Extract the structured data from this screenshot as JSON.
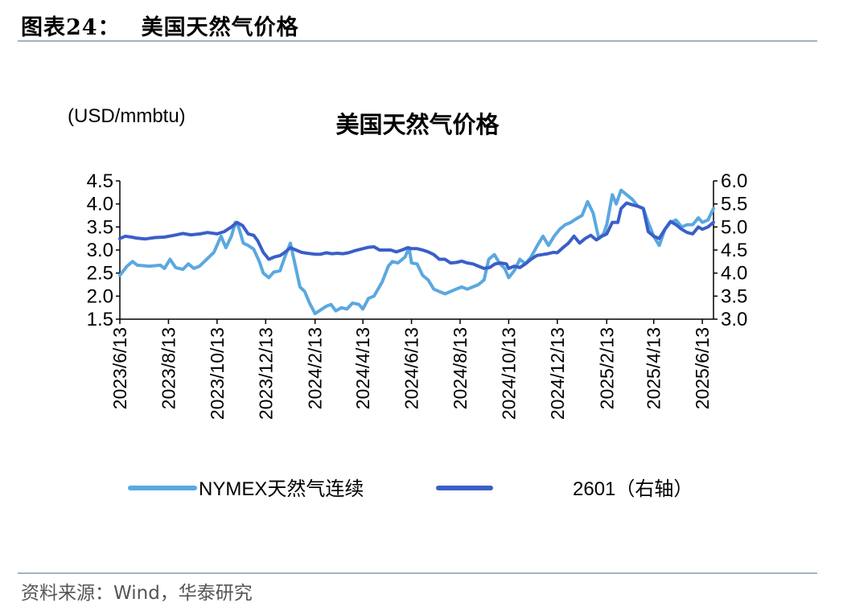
{
  "header": {
    "figure_no": "图表24：",
    "title": "美国天然气价格"
  },
  "source": "资料来源：Wind，华泰研究",
  "colors": {
    "nymex": "#5aa8e0",
    "contract": "#3a5fc8",
    "rule": "#9fb3c8"
  },
  "chart_data": {
    "type": "line",
    "title": "美国天然气价格",
    "unit_label": "(USD/mmbtu)",
    "ylim": [
      1.5,
      4.5
    ],
    "y_ticks": [
      "4.5",
      "4.0",
      "3.5",
      "3.0",
      "2.5",
      "2.0",
      "1.5"
    ],
    "y2lim": [
      3.0,
      6.0
    ],
    "y2_ticks": [
      "6.0",
      "5.5",
      "5.0",
      "4.5",
      "4.0",
      "3.5",
      "3.0"
    ],
    "x_start": "2023-06-13",
    "x_end": "2025-06-27",
    "x_ticks": [
      "2023/6/13",
      "2023/8/13",
      "2023/10/13",
      "2023/12/13",
      "2024/2/13",
      "2024/4/13",
      "2024/6/13",
      "2024/8/13",
      "2024/10/13",
      "2024/12/13",
      "2025/2/13",
      "2025/4/13",
      "2025/6/13"
    ],
    "grid": false,
    "legend_position": "bottom",
    "series": [
      {
        "name": "NYMEX天然气连续",
        "axis": "left",
        "values": [
          [
            "2023-06-13",
            2.45
          ],
          [
            "2023-06-22",
            2.65
          ],
          [
            "2023-06-29",
            2.75
          ],
          [
            "2023-07-05",
            2.67
          ],
          [
            "2023-07-20",
            2.65
          ],
          [
            "2023-08-03",
            2.67
          ],
          [
            "2023-08-08",
            2.6
          ],
          [
            "2023-08-15",
            2.8
          ],
          [
            "2023-08-22",
            2.62
          ],
          [
            "2023-08-31",
            2.58
          ],
          [
            "2023-09-07",
            2.7
          ],
          [
            "2023-09-14",
            2.6
          ],
          [
            "2023-09-21",
            2.65
          ],
          [
            "2023-09-30",
            2.8
          ],
          [
            "2023-10-09",
            2.95
          ],
          [
            "2023-10-18",
            3.3
          ],
          [
            "2023-10-24",
            3.05
          ],
          [
            "2023-10-31",
            3.3
          ],
          [
            "2023-11-05",
            3.6
          ],
          [
            "2023-11-09",
            3.5
          ],
          [
            "2023-11-15",
            3.15
          ],
          [
            "2023-11-21",
            3.1
          ],
          [
            "2023-11-28",
            3.02
          ],
          [
            "2023-12-05",
            2.75
          ],
          [
            "2023-12-10",
            2.5
          ],
          [
            "2023-12-17",
            2.4
          ],
          [
            "2023-12-23",
            2.52
          ],
          [
            "2023-12-31",
            2.55
          ],
          [
            "2024-01-06",
            2.85
          ],
          [
            "2024-01-13",
            3.15
          ],
          [
            "2024-01-20",
            2.6
          ],
          [
            "2024-01-25",
            2.2
          ],
          [
            "2024-01-31",
            2.1
          ],
          [
            "2024-02-06",
            1.85
          ],
          [
            "2024-02-13",
            1.62
          ],
          [
            "2024-02-20",
            1.7
          ],
          [
            "2024-02-27",
            1.78
          ],
          [
            "2024-03-04",
            1.82
          ],
          [
            "2024-03-10",
            1.68
          ],
          [
            "2024-03-17",
            1.75
          ],
          [
            "2024-03-24",
            1.72
          ],
          [
            "2024-03-31",
            1.85
          ],
          [
            "2024-04-08",
            1.82
          ],
          [
            "2024-04-13",
            1.72
          ],
          [
            "2024-04-20",
            1.95
          ],
          [
            "2024-04-27",
            2.0
          ],
          [
            "2024-05-07",
            2.3
          ],
          [
            "2024-05-15",
            2.65
          ],
          [
            "2024-05-20",
            2.75
          ],
          [
            "2024-05-27",
            2.72
          ],
          [
            "2024-06-05",
            2.85
          ],
          [
            "2024-06-10",
            3.05
          ],
          [
            "2024-06-13",
            2.72
          ],
          [
            "2024-06-20",
            2.7
          ],
          [
            "2024-06-27",
            2.45
          ],
          [
            "2024-07-04",
            2.35
          ],
          [
            "2024-07-11",
            2.15
          ],
          [
            "2024-07-18",
            2.1
          ],
          [
            "2024-07-25",
            2.05
          ],
          [
            "2024-08-01",
            2.1
          ],
          [
            "2024-08-08",
            2.15
          ],
          [
            "2024-08-15",
            2.2
          ],
          [
            "2024-08-22",
            2.15
          ],
          [
            "2024-08-29",
            2.2
          ],
          [
            "2024-09-05",
            2.25
          ],
          [
            "2024-09-12",
            2.35
          ],
          [
            "2024-09-18",
            2.8
          ],
          [
            "2024-09-25",
            2.9
          ],
          [
            "2024-10-02",
            2.7
          ],
          [
            "2024-10-08",
            2.6
          ],
          [
            "2024-10-13",
            2.4
          ],
          [
            "2024-10-20",
            2.55
          ],
          [
            "2024-10-27",
            2.8
          ],
          [
            "2024-11-03",
            2.7
          ],
          [
            "2024-11-10",
            2.85
          ],
          [
            "2024-11-18",
            3.1
          ],
          [
            "2024-11-25",
            3.3
          ],
          [
            "2024-12-02",
            3.1
          ],
          [
            "2024-12-09",
            3.3
          ],
          [
            "2024-12-16",
            3.45
          ],
          [
            "2024-12-23",
            3.55
          ],
          [
            "2024-12-30",
            3.6
          ],
          [
            "2025-01-06",
            3.68
          ],
          [
            "2025-01-13",
            3.75
          ],
          [
            "2025-01-20",
            4.05
          ],
          [
            "2025-01-27",
            3.8
          ],
          [
            "2025-02-03",
            3.25
          ],
          [
            "2025-02-09",
            3.35
          ],
          [
            "2025-02-13",
            3.55
          ],
          [
            "2025-02-20",
            4.2
          ],
          [
            "2025-02-25",
            4.0
          ],
          [
            "2025-03-03",
            4.3
          ],
          [
            "2025-03-10",
            4.2
          ],
          [
            "2025-03-17",
            4.1
          ],
          [
            "2025-03-24",
            3.95
          ],
          [
            "2025-03-31",
            3.9
          ],
          [
            "2025-04-06",
            3.6
          ],
          [
            "2025-04-13",
            3.3
          ],
          [
            "2025-04-20",
            3.1
          ],
          [
            "2025-04-27",
            3.45
          ],
          [
            "2025-05-04",
            3.6
          ],
          [
            "2025-05-11",
            3.65
          ],
          [
            "2025-05-18",
            3.5
          ],
          [
            "2025-05-25",
            3.55
          ],
          [
            "2025-06-01",
            3.55
          ],
          [
            "2025-06-08",
            3.7
          ],
          [
            "2025-06-13",
            3.6
          ],
          [
            "2025-06-20",
            3.65
          ],
          [
            "2025-06-27",
            3.9
          ]
        ]
      },
      {
        "name": "2601（右轴）",
        "axis": "right",
        "values": [
          [
            "2023-06-13",
            4.75
          ],
          [
            "2023-06-20",
            4.8
          ],
          [
            "2023-06-27",
            4.78
          ],
          [
            "2023-07-04",
            4.76
          ],
          [
            "2023-07-15",
            4.74
          ],
          [
            "2023-07-27",
            4.77
          ],
          [
            "2023-08-08",
            4.78
          ],
          [
            "2023-08-20",
            4.82
          ],
          [
            "2023-08-31",
            4.86
          ],
          [
            "2023-09-10",
            4.83
          ],
          [
            "2023-09-22",
            4.85
          ],
          [
            "2023-10-01",
            4.88
          ],
          [
            "2023-10-13",
            4.85
          ],
          [
            "2023-10-22",
            4.9
          ],
          [
            "2023-10-31",
            5.0
          ],
          [
            "2023-11-07",
            5.1
          ],
          [
            "2023-11-14",
            5.03
          ],
          [
            "2023-11-21",
            4.85
          ],
          [
            "2023-11-28",
            4.82
          ],
          [
            "2023-12-03",
            4.7
          ],
          [
            "2023-12-10",
            4.45
          ],
          [
            "2023-12-17",
            4.3
          ],
          [
            "2023-12-24",
            4.35
          ],
          [
            "2023-12-31",
            4.38
          ],
          [
            "2024-01-06",
            4.45
          ],
          [
            "2024-01-13",
            4.55
          ],
          [
            "2024-01-20",
            4.5
          ],
          [
            "2024-01-27",
            4.45
          ],
          [
            "2024-02-03",
            4.43
          ],
          [
            "2024-02-13",
            4.41
          ],
          [
            "2024-02-20",
            4.41
          ],
          [
            "2024-02-27",
            4.44
          ],
          [
            "2024-03-05",
            4.42
          ],
          [
            "2024-03-12",
            4.43
          ],
          [
            "2024-03-19",
            4.42
          ],
          [
            "2024-03-26",
            4.44
          ],
          [
            "2024-04-02",
            4.48
          ],
          [
            "2024-04-13",
            4.53
          ],
          [
            "2024-04-20",
            4.56
          ],
          [
            "2024-04-27",
            4.57
          ],
          [
            "2024-05-04",
            4.5
          ],
          [
            "2024-05-11",
            4.5
          ],
          [
            "2024-05-18",
            4.5
          ],
          [
            "2024-05-25",
            4.46
          ],
          [
            "2024-06-01",
            4.5
          ],
          [
            "2024-06-08",
            4.55
          ],
          [
            "2024-06-13",
            4.53
          ],
          [
            "2024-06-20",
            4.53
          ],
          [
            "2024-06-27",
            4.5
          ],
          [
            "2024-07-04",
            4.46
          ],
          [
            "2024-07-11",
            4.4
          ],
          [
            "2024-07-18",
            4.3
          ],
          [
            "2024-07-25",
            4.3
          ],
          [
            "2024-08-01",
            4.22
          ],
          [
            "2024-08-08",
            4.23
          ],
          [
            "2024-08-15",
            4.26
          ],
          [
            "2024-08-22",
            4.22
          ],
          [
            "2024-08-29",
            4.2
          ],
          [
            "2024-09-05",
            4.15
          ],
          [
            "2024-09-12",
            4.1
          ],
          [
            "2024-09-19",
            4.12
          ],
          [
            "2024-09-26",
            4.2
          ],
          [
            "2024-10-03",
            4.22
          ],
          [
            "2024-10-10",
            4.2
          ],
          [
            "2024-10-13",
            4.1
          ],
          [
            "2024-10-20",
            4.15
          ],
          [
            "2024-10-27",
            4.12
          ],
          [
            "2024-11-03",
            4.2
          ],
          [
            "2024-11-10",
            4.3
          ],
          [
            "2024-11-17",
            4.38
          ],
          [
            "2024-11-24",
            4.4
          ],
          [
            "2024-12-01",
            4.42
          ],
          [
            "2024-12-08",
            4.45
          ],
          [
            "2024-12-13",
            4.44
          ],
          [
            "2024-12-20",
            4.55
          ],
          [
            "2024-12-27",
            4.65
          ],
          [
            "2025-01-03",
            4.8
          ],
          [
            "2025-01-10",
            4.65
          ],
          [
            "2025-01-17",
            4.75
          ],
          [
            "2025-01-24",
            4.82
          ],
          [
            "2025-01-31",
            4.72
          ],
          [
            "2025-02-07",
            4.8
          ],
          [
            "2025-02-13",
            4.85
          ],
          [
            "2025-02-20",
            5.1
          ],
          [
            "2025-02-27",
            5.1
          ],
          [
            "2025-03-03",
            5.4
          ],
          [
            "2025-03-10",
            5.52
          ],
          [
            "2025-03-17",
            5.48
          ],
          [
            "2025-03-24",
            5.45
          ],
          [
            "2025-03-31",
            5.4
          ],
          [
            "2025-04-06",
            4.9
          ],
          [
            "2025-04-13",
            4.8
          ],
          [
            "2025-04-20",
            4.75
          ],
          [
            "2025-04-27",
            4.95
          ],
          [
            "2025-05-04",
            5.12
          ],
          [
            "2025-05-11",
            5.05
          ],
          [
            "2025-05-18",
            4.95
          ],
          [
            "2025-05-25",
            4.88
          ],
          [
            "2025-06-01",
            4.85
          ],
          [
            "2025-06-08",
            5.0
          ],
          [
            "2025-06-13",
            4.95
          ],
          [
            "2025-06-20",
            5.0
          ],
          [
            "2025-06-27",
            5.1
          ]
        ]
      }
    ]
  }
}
